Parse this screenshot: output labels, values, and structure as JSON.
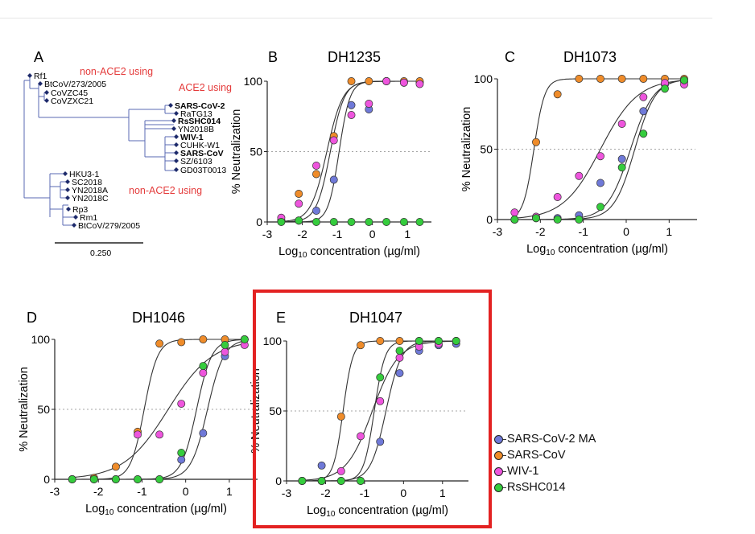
{
  "panels": {
    "A": {
      "letter": "A",
      "labels": {
        "top_nonace": "non-ACE2 using",
        "ace2": "ACE2 using",
        "bottom_nonace": "non-ACE2 using",
        "scale": "0.250"
      },
      "taxa": [
        {
          "name": "Rf1",
          "bold": false
        },
        {
          "name": "BtCoV/273/2005",
          "bold": false
        },
        {
          "name": "CoVZC45",
          "bold": false
        },
        {
          "name": "CoVZXC21",
          "bold": false
        },
        {
          "name": "SARS-CoV-2",
          "bold": true
        },
        {
          "name": "RaTG13",
          "bold": false
        },
        {
          "name": "RsSHC014",
          "bold": true
        },
        {
          "name": "YN2018B",
          "bold": false
        },
        {
          "name": "WIV-1",
          "bold": true
        },
        {
          "name": "CUHK-W1",
          "bold": false
        },
        {
          "name": "SARS-CoV",
          "bold": true
        },
        {
          "name": "SZ/6103",
          "bold": false
        },
        {
          "name": "GD03T0013",
          "bold": false
        },
        {
          "name": "HKU3-1",
          "bold": false
        },
        {
          "name": "SC2018",
          "bold": false
        },
        {
          "name": "YN2018A",
          "bold": false
        },
        {
          "name": "YN2018C",
          "bold": false
        },
        {
          "name": "Rp3",
          "bold": false
        },
        {
          "name": "Rm1",
          "bold": false
        },
        {
          "name": "BtCoV/279/2005",
          "bold": false
        }
      ]
    }
  },
  "axis_text": {
    "ylabel": "% Neutralization",
    "xlabel_pre": "Log",
    "xlabel_sub": "10",
    "xlabel_post": " concentration (µg/ml)"
  },
  "colors": {
    "SARS-CoV-2 MA": "#6f79d8",
    "SARS-CoV": "#ef8c2a",
    "WIV-1": "#ee55dd",
    "RsSHC014": "#35cc3d",
    "highlight_box": "#e32222",
    "tree_lines": "#5a6ab3",
    "annotation_red": "#e43b3b"
  },
  "legend": [
    "SARS-CoV-2 MA",
    "SARS-CoV",
    "WIV-1",
    "RsSHC014"
  ],
  "chart_data": [
    {
      "type": "scatter",
      "panel": "B",
      "title": "DH1235",
      "xlabel": "Log10 concentration (µg/ml)",
      "ylabel": "% Neutralization",
      "xlim": [
        -3,
        1.5
      ],
      "ylim": [
        0,
        100
      ],
      "xticks": [
        -3,
        -2,
        -1,
        0,
        1
      ],
      "yticks": [
        0,
        50,
        100
      ],
      "reference_line_y": 50,
      "highlighted": false,
      "x": [
        -2.6,
        -2.1,
        -1.6,
        -1.1,
        -0.6,
        -0.1,
        0.4,
        0.9,
        1.35
      ],
      "series": [
        {
          "name": "SARS-CoV-2 MA",
          "values": [
            1,
            1,
            8,
            30,
            83,
            80,
            100,
            99,
            99
          ],
          "ec50": -0.95,
          "hill": 2.8
        },
        {
          "name": "SARS-CoV",
          "values": [
            1,
            20,
            34,
            61,
            100,
            100,
            100,
            100,
            100
          ],
          "ec50": -1.3,
          "hill": 1.9
        },
        {
          "name": "WIV-1",
          "values": [
            3,
            13,
            40,
            58,
            76,
            84,
            100,
            99,
            98
          ],
          "ec50": -1.2,
          "hill": 2.2
        },
        {
          "name": "RsSHC014",
          "values": [
            0,
            1,
            0,
            0,
            0,
            0,
            0,
            0,
            0
          ],
          "ec50": null,
          "hill": null
        }
      ]
    },
    {
      "type": "scatter",
      "panel": "C",
      "title": "DH1073",
      "xlabel": "Log10 concentration (µg/ml)",
      "ylabel": "% Neutralization",
      "xlim": [
        -3,
        1.5
      ],
      "ylim": [
        0,
        100
      ],
      "xticks": [
        -3,
        -2,
        -1,
        0,
        1
      ],
      "yticks": [
        0,
        50,
        100
      ],
      "reference_line_y": 50,
      "highlighted": false,
      "x": [
        -2.6,
        -2.1,
        -1.6,
        -1.1,
        -0.6,
        -0.1,
        0.4,
        0.9,
        1.35
      ],
      "series": [
        {
          "name": "SARS-CoV-2 MA",
          "values": [
            0,
            1,
            1,
            3,
            26,
            43,
            77,
            96,
            98
          ],
          "ec50": 0.1,
          "hill": 1.6
        },
        {
          "name": "SARS-CoV",
          "values": [
            0,
            55,
            89,
            100,
            100,
            100,
            100,
            100,
            100
          ],
          "ec50": -2.15,
          "hill": 3.5
        },
        {
          "name": "WIV-1",
          "values": [
            5,
            2,
            16,
            31,
            45,
            68,
            87,
            97,
            96
          ],
          "ec50": -0.6,
          "hill": 1.0
        },
        {
          "name": "RsSHC014",
          "values": [
            0,
            1,
            0,
            0,
            9,
            37,
            61,
            93,
            99
          ],
          "ec50": 0.2,
          "hill": 1.8
        }
      ]
    },
    {
      "type": "scatter",
      "panel": "D",
      "title": "DH1046",
      "xlabel": "Log10 concentration (µg/ml)",
      "ylabel": "% Neutralization",
      "xlim": [
        -3,
        1.5
      ],
      "ylim": [
        0,
        100
      ],
      "xticks": [
        -3,
        -2,
        -1,
        0,
        1
      ],
      "yticks": [
        0,
        50,
        100
      ],
      "reference_line_y": 50,
      "highlighted": false,
      "x": [
        -2.6,
        -2.1,
        -1.6,
        -1.1,
        -0.6,
        -0.1,
        0.4,
        0.9,
        1.35
      ],
      "series": [
        {
          "name": "SARS-CoV-2 MA",
          "values": [
            0,
            0,
            0,
            0,
            0,
            14,
            33,
            88,
            100
          ],
          "ec50": 0.5,
          "hill": 2.3
        },
        {
          "name": "SARS-CoV",
          "values": [
            0,
            1,
            9,
            34,
            97,
            98,
            100,
            100,
            100
          ],
          "ec50": -0.95,
          "hill": 2.8
        },
        {
          "name": "WIV-1",
          "values": [
            0,
            0,
            0,
            32,
            32,
            54,
            76,
            91,
            96
          ],
          "ec50": -0.4,
          "hill": 0.85
        },
        {
          "name": "RsSHC014",
          "values": [
            0,
            0,
            0,
            0,
            0,
            19,
            81,
            96,
            100
          ],
          "ec50": 0.25,
          "hill": 2.5
        }
      ]
    },
    {
      "type": "scatter",
      "panel": "E",
      "title": "DH1047",
      "xlabel": "Log10 concentration (µg/ml)",
      "ylabel": "% Neutralization",
      "xlim": [
        -3,
        1.5
      ],
      "ylim": [
        0,
        100
      ],
      "xticks": [
        -3,
        -2,
        -1,
        0,
        1
      ],
      "yticks": [
        0,
        50,
        100
      ],
      "reference_line_y": 50,
      "highlighted": true,
      "x": [
        -2.6,
        -2.1,
        -1.6,
        -1.1,
        -0.6,
        -0.1,
        0.4,
        0.9,
        1.35
      ],
      "series": [
        {
          "name": "SARS-CoV-2 MA",
          "values": [
            0,
            11,
            0,
            0,
            28,
            77,
            93,
            97,
            98
          ],
          "ec50": -0.45,
          "hill": 2.2
        },
        {
          "name": "SARS-CoV",
          "values": [
            0,
            0,
            46,
            97,
            100,
            100,
            100,
            100,
            100
          ],
          "ec50": -1.55,
          "hill": 3.5
        },
        {
          "name": "WIV-1",
          "values": [
            0,
            0,
            7,
            32,
            57,
            88,
            96,
            98,
            100
          ],
          "ec50": -0.8,
          "hill": 1.3
        },
        {
          "name": "RsSHC014",
          "values": [
            0,
            0,
            0,
            0,
            74,
            93,
            100,
            100,
            100
          ],
          "ec50": -0.75,
          "hill": 3.2
        }
      ]
    }
  ]
}
